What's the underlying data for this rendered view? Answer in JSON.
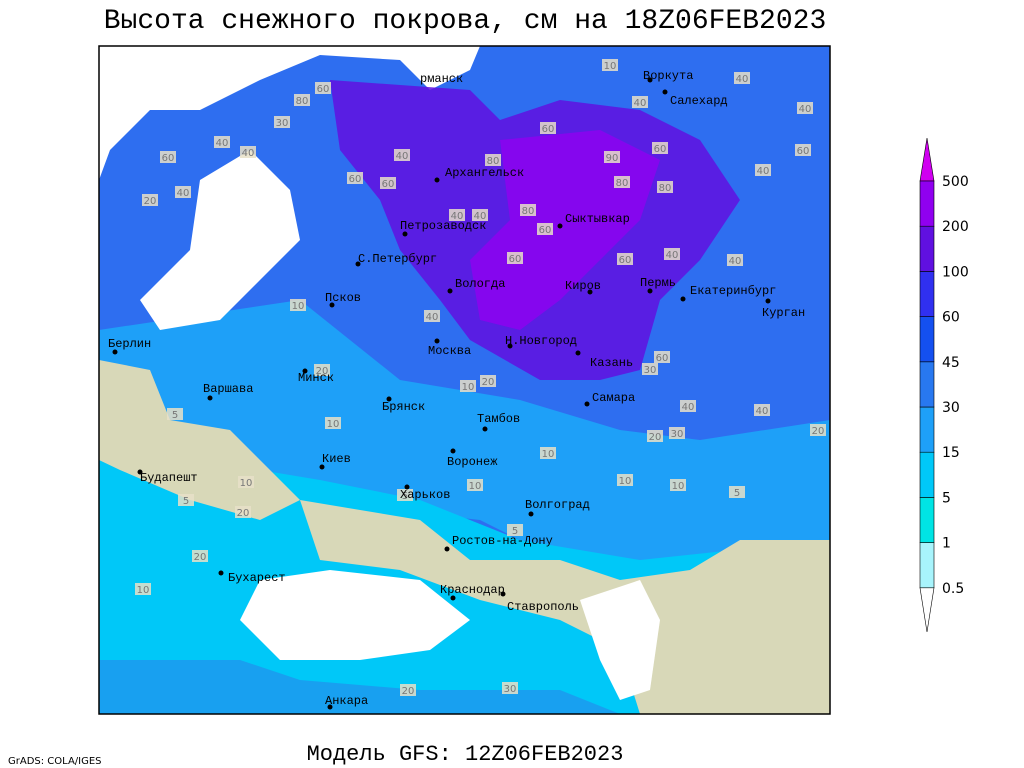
{
  "title": "Высота снежного покрова, см на 18Z06FEB2023",
  "footer": "Модель GFS: 12Z06FEB2023",
  "credit": "GrADS: COLA/IGES",
  "colorbar": {
    "levels": [
      0.5,
      1,
      5,
      15,
      30,
      45,
      60,
      100,
      200,
      500
    ],
    "colors": [
      "#ffffff",
      "#a8f4fc",
      "#00e4e4",
      "#00c8f8",
      "#1ea0f8",
      "#2878f0",
      "#1450f0",
      "#3030f0",
      "#6010e0",
      "#9000f0",
      "#d000f0"
    ]
  },
  "cities": [
    "рманск",
    "Воркута",
    "Салехард",
    "Архангельск",
    "Сыктывкар",
    "Петрозаводск",
    "С.Петербург",
    "Вологда",
    "Киров",
    "Пермь",
    "Екатеринбург",
    "Курган",
    "Псков",
    "Москва",
    "Н.Новгород",
    "Казань",
    "Берлин",
    "Варшава",
    "Минск",
    "Брянск",
    "Тамбов",
    "Самара",
    "Киев",
    "Воронеж",
    "Будапешт",
    "Харьков",
    "Волгоград",
    "Ростов-на-Дону",
    "Бухарест",
    "Краснодар",
    "Ставрополь",
    "Анкара"
  ],
  "contour_labels": [
    10,
    40,
    40,
    40,
    60,
    80,
    30,
    40,
    40,
    60,
    40,
    20,
    60,
    40,
    60,
    80,
    60,
    90,
    80,
    80,
    60,
    60,
    40,
    40,
    40,
    60,
    80,
    60,
    60,
    40,
    40,
    10,
    40,
    20,
    10,
    10,
    20,
    60,
    30,
    30,
    40,
    40,
    20,
    20,
    5,
    10,
    20,
    5,
    10,
    10,
    5,
    10,
    5,
    20,
    10,
    20,
    30,
    10,
    5
  ]
}
